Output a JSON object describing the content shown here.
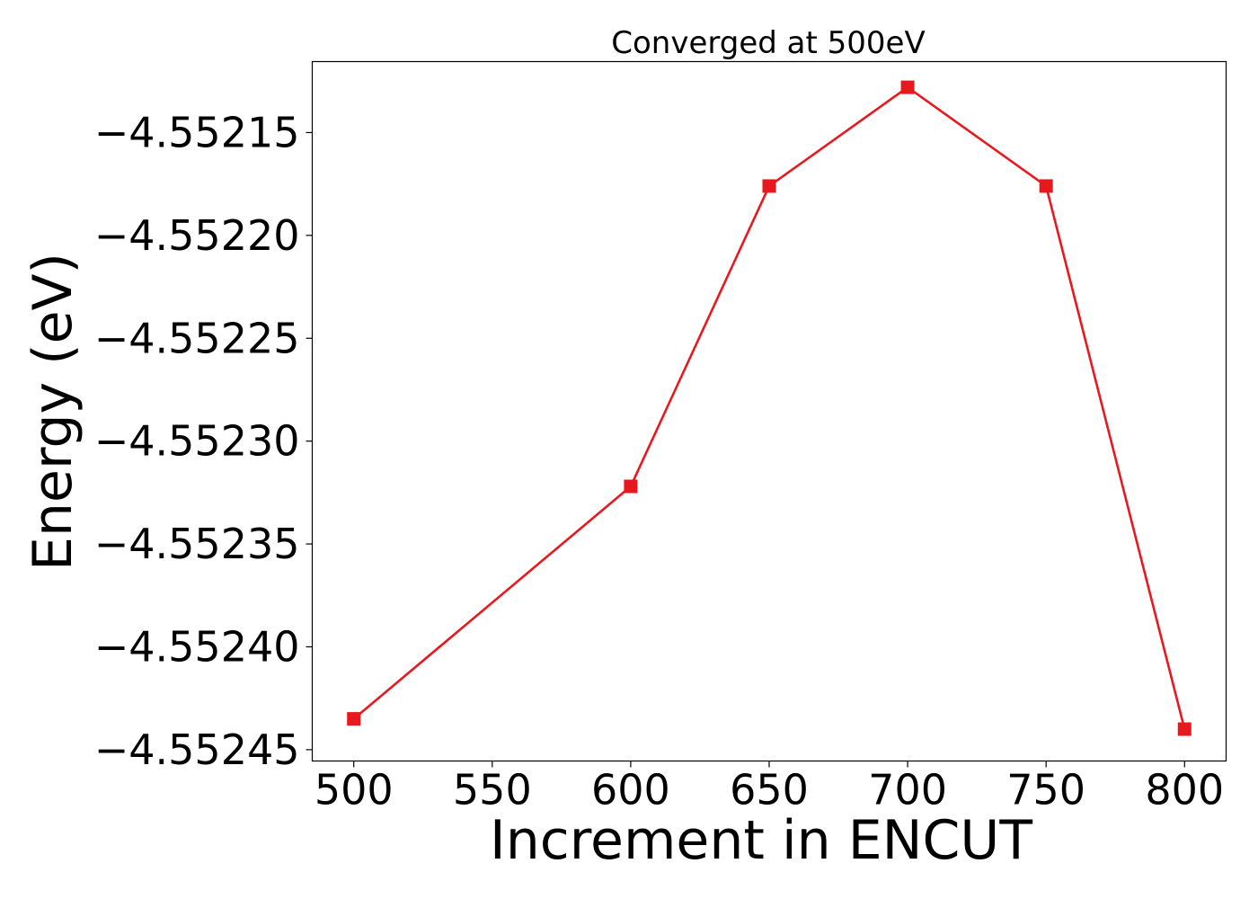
{
  "chart_data": {
    "type": "line",
    "title": "Converged at 500eV",
    "xlabel": "Increment in ENCUT",
    "ylabel": "Energy (eV)",
    "x": [
      500,
      600,
      650,
      700,
      750,
      800
    ],
    "series": [
      {
        "values": [
          -4.552435,
          -4.552322,
          -4.552176,
          -4.552128,
          -4.552176,
          -4.55244
        ],
        "color": "#e8191e",
        "marker": "square"
      }
    ],
    "xlim": [
      485,
      815
    ],
    "ylim": [
      -4.5524555,
      -4.5521155
    ],
    "xticks": [
      500,
      550,
      600,
      650,
      700,
      750,
      800
    ],
    "xtick_labels": [
      "500",
      "550",
      "600",
      "650",
      "700",
      "750",
      "800"
    ],
    "yticks": [
      -4.55245,
      -4.5524,
      -4.55235,
      -4.5523,
      -4.55225,
      -4.5522,
      -4.55215
    ],
    "ytick_labels": [
      "−4.55245",
      "−4.55240",
      "−4.55235",
      "−4.55230",
      "−4.55225",
      "−4.55220",
      "−4.55215"
    ],
    "grid": false,
    "legend": "none"
  }
}
